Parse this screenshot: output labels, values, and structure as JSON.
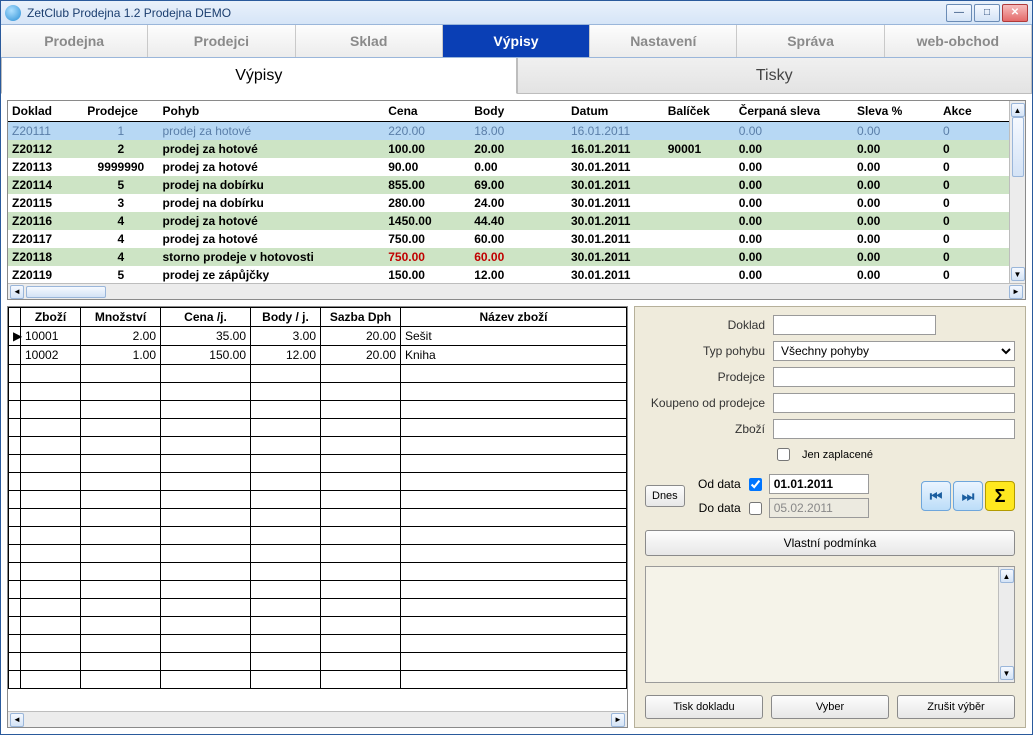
{
  "window": {
    "title": "ZetClub Prodejna 1.2  Prodejna DEMO"
  },
  "main_tabs": [
    "Prodejna",
    "Prodejci",
    "Sklad",
    "Výpisy",
    "Nastavení",
    "Správa",
    "web-obchod"
  ],
  "main_tab_active": 3,
  "sub_tabs": [
    "Výpisy",
    "Tisky"
  ],
  "sub_tab_active": 0,
  "upper_table": {
    "columns": [
      "Doklad",
      "Prodejce",
      "Pohyb",
      "Cena",
      "Body",
      "Datum",
      "Balíček",
      "Čerpaná sleva",
      "Sleva %",
      "Akce"
    ],
    "rows": [
      {
        "cls": "selected",
        "doklad": "Z20111",
        "prodejce": "1",
        "pohyb": "prodej za hotové",
        "cena": "220.00",
        "body": "18.00",
        "datum": "16.01.2011",
        "balicek": "",
        "cerp": "0.00",
        "sleva": "0.00",
        "akce": "0"
      },
      {
        "cls": "greeny",
        "doklad": "Z20112",
        "prodejce": "2",
        "pohyb": "prodej za hotové",
        "cena": "100.00",
        "body": "20.00",
        "datum": "16.01.2011",
        "balicek": "90001",
        "cerp": "0.00",
        "sleva": "0.00",
        "akce": "0"
      },
      {
        "cls": "plain",
        "doklad": "Z20113",
        "prodejce": "9999990",
        "pohyb": "prodej za hotové",
        "cena": "90.00",
        "body": "0.00",
        "datum": "30.01.2011",
        "balicek": "",
        "cerp": "0.00",
        "sleva": "0.00",
        "akce": "0"
      },
      {
        "cls": "greeny",
        "doklad": "Z20114",
        "prodejce": "5",
        "pohyb": "prodej na dobírku",
        "cena": "855.00",
        "body": "69.00",
        "datum": "30.01.2011",
        "balicek": "",
        "cerp": "0.00",
        "sleva": "0.00",
        "akce": "0"
      },
      {
        "cls": "plain",
        "doklad": "Z20115",
        "prodejce": "3",
        "pohyb": "prodej na dobírku",
        "cena": "280.00",
        "body": "24.00",
        "datum": "30.01.2011",
        "balicek": "",
        "cerp": "0.00",
        "sleva": "0.00",
        "akce": "0"
      },
      {
        "cls": "greeny",
        "doklad": "Z20116",
        "prodejce": "4",
        "pohyb": "prodej za hotové",
        "cena": "1450.00",
        "body": "44.40",
        "datum": "30.01.2011",
        "balicek": "",
        "cerp": "0.00",
        "sleva": "0.00",
        "akce": "0"
      },
      {
        "cls": "plain",
        "doklad": "Z20117",
        "prodejce": "4",
        "pohyb": "prodej za hotové",
        "cena": "750.00",
        "body": "60.00",
        "datum": "30.01.2011",
        "balicek": "",
        "cerp": "0.00",
        "sleva": "0.00",
        "akce": "0"
      },
      {
        "cls": "greeny storno",
        "doklad": "Z20118",
        "prodejce": "4",
        "pohyb": "storno prodeje v hotovosti",
        "cena": "750.00",
        "body": "60.00",
        "datum": "30.01.2011",
        "balicek": "",
        "cerp": "0.00",
        "sleva": "0.00",
        "akce": "0"
      },
      {
        "cls": "plain",
        "doklad": "Z20119",
        "prodejce": "5",
        "pohyb": "prodej ze zápůjčky",
        "cena": "150.00",
        "body": "12.00",
        "datum": "30.01.2011",
        "balicek": "",
        "cerp": "0.00",
        "sleva": "0.00",
        "akce": "0"
      }
    ]
  },
  "detail_table": {
    "columns": [
      "Zboží",
      "Množství",
      "Cena /j.",
      "Body / j.",
      "Sazba Dph",
      "Název zboží"
    ],
    "col_align": [
      "left",
      "right",
      "right",
      "right",
      "right",
      "left"
    ],
    "rows": [
      [
        "10001",
        "2.00",
        "35.00",
        "3.00",
        "20.00",
        "Sešit"
      ],
      [
        "10002",
        "1.00",
        "150.00",
        "12.00",
        "20.00",
        "Kniha"
      ]
    ],
    "empty_rows": 18
  },
  "filter": {
    "labels": {
      "doklad": "Doklad",
      "typ": "Typ pohybu",
      "prodejce": "Prodejce",
      "koupeno": "Koupeno od prodejce",
      "zbozi": "Zboží",
      "jen_zaplacene": "Jen zaplacené",
      "od_data": "Od data",
      "do_data": "Do data"
    },
    "typ_value": "Všechny pohyby",
    "dnes_btn": "Dnes",
    "od_checked": true,
    "do_checked": false,
    "od_value": "01.01.2011",
    "do_value": "05.02.2011",
    "vlastni_btn": "Vlastní podmínka",
    "bottom_btns": [
      "Tisk dokladu",
      "Vyber",
      "Zrušit výběr"
    ]
  }
}
